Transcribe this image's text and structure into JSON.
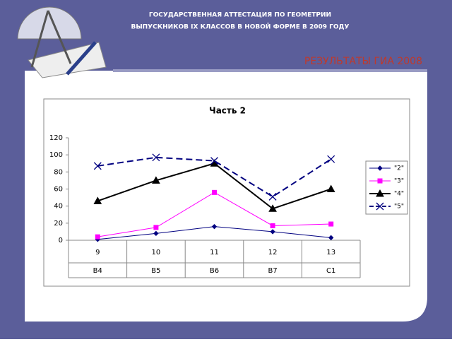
{
  "header": {
    "line1": "ГОСУДАРСТВЕННАЯ АТТЕСТАЦИЯ ПО ГЕОМЕТРИИ",
    "line2": "ВЫПУСКНИКОВ IX КЛАССОВ В НОВОЙ ФОРМЕ В 2009 ГОДУ",
    "subtitle": "РЕЗУЛЬТАТЫ  ГИА 2008"
  },
  "chart_data": {
    "type": "line",
    "title": "Часть 2",
    "categories": [
      "9",
      "10",
      "11",
      "12",
      "13"
    ],
    "categories_row2": [
      "B4",
      "B5",
      "B6",
      "B7",
      "C1"
    ],
    "ylim": [
      0,
      120
    ],
    "yticks": [
      0,
      20,
      40,
      60,
      80,
      100,
      120
    ],
    "grid": false,
    "legend": "right",
    "series": [
      {
        "name": "\"2\"",
        "color": "#000080",
        "marker": "diamond",
        "line_style": "solid",
        "line_width": 1,
        "values": [
          1,
          8,
          16,
          10,
          3
        ]
      },
      {
        "name": "\"3\"",
        "color": "#ff00ff",
        "marker": "square",
        "line_style": "solid",
        "line_width": 1,
        "values": [
          4,
          15,
          56,
          17,
          19
        ]
      },
      {
        "name": "\"4\"",
        "color": "#000000",
        "marker": "triangle",
        "line_style": "solid",
        "line_width": 2,
        "values": [
          46,
          70,
          90,
          37,
          60
        ]
      },
      {
        "name": "\"5\"",
        "color": "#000080",
        "marker": "x",
        "line_style": "dashed",
        "line_width": 2,
        "values": [
          87,
          97,
          93,
          51,
          95
        ]
      }
    ]
  }
}
